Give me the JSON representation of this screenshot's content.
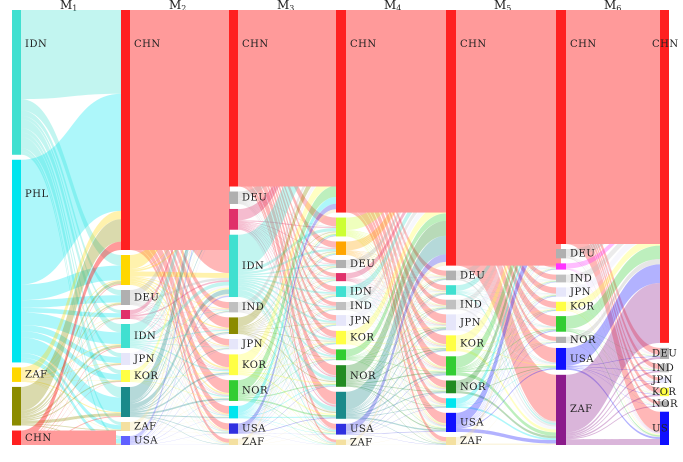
{
  "columns": [
    {
      "id": "M1",
      "label": "M",
      "sub": "1"
    },
    {
      "id": "M2",
      "label": "M",
      "sub": "2"
    },
    {
      "id": "M3",
      "label": "M",
      "sub": "3"
    },
    {
      "id": "M4",
      "label": "M",
      "sub": "4"
    },
    {
      "id": "M5",
      "label": "M",
      "sub": "5"
    },
    {
      "id": "M6",
      "label": "M",
      "sub": "6"
    }
  ],
  "nodes": [
    {
      "col": 0,
      "label": "IDN",
      "color": "#40e0d0",
      "value": 30
    },
    {
      "col": 0,
      "label": "PHL",
      "color": "#00e5ee",
      "value": 42
    },
    {
      "col": 0,
      "label": "ZAF",
      "color": "#ffd700",
      "value": 3
    },
    {
      "col": 0,
      "label": "",
      "color": "#8b8b00",
      "value": 8
    },
    {
      "col": 0,
      "label": "CHN",
      "color": "#ff2020",
      "value": 3
    },
    {
      "col": 1,
      "label": "CHN",
      "color": "#ff2020",
      "value": 80
    },
    {
      "col": 1,
      "label": "",
      "color": "#ffd700",
      "value": 10
    },
    {
      "col": 1,
      "label": "DEU",
      "color": "#b0b0b0",
      "value": 5
    },
    {
      "col": 1,
      "label": "",
      "color": "#e0306a",
      "value": 3
    },
    {
      "col": 1,
      "label": "IDN",
      "color": "#40e0d0",
      "value": 8
    },
    {
      "col": 1,
      "label": "JPN",
      "color": "#e6e6fa",
      "value": 4
    },
    {
      "col": 1,
      "label": "KOR",
      "color": "#ffff44",
      "value": 4
    },
    {
      "col": 1,
      "label": "",
      "color": "#1a8a8a",
      "value": 10
    },
    {
      "col": 1,
      "label": "ZAF",
      "color": "#f4e0a0",
      "value": 3
    },
    {
      "col": 1,
      "label": "USA",
      "color": "#6060ff",
      "value": 3
    },
    {
      "col": 2,
      "label": "CHN",
      "color": "#ff2020",
      "value": 85
    },
    {
      "col": 2,
      "label": "DEU",
      "color": "#b0b0b0",
      "value": 6
    },
    {
      "col": 2,
      "label": "",
      "color": "#e0306a",
      "value": 10
    },
    {
      "col": 2,
      "label": "IDN",
      "color": "#40e0d0",
      "value": 30
    },
    {
      "col": 2,
      "label": "IND",
      "color": "#c0c0c0",
      "value": 5
    },
    {
      "col": 2,
      "label": "",
      "color": "#8b8b00",
      "value": 8
    },
    {
      "col": 2,
      "label": "JPN",
      "color": "#e6e6fa",
      "value": 5
    },
    {
      "col": 2,
      "label": "KOR",
      "color": "#ffff44",
      "value": 10
    },
    {
      "col": 2,
      "label": "NOR",
      "color": "#32cd32",
      "value": 10
    },
    {
      "col": 2,
      "label": "",
      "color": "#00e5ee",
      "value": 6
    },
    {
      "col": 2,
      "label": "USA",
      "color": "#3030e0",
      "value": 5
    },
    {
      "col": 2,
      "label": "ZAF",
      "color": "#f4e0a0",
      "value": 3
    },
    {
      "col": 3,
      "label": "CHN",
      "color": "#ff2020",
      "value": 150
    },
    {
      "col": 3,
      "label": "",
      "color": "#ccff33",
      "value": 14
    },
    {
      "col": 3,
      "label": "",
      "color": "#ffa500",
      "value": 10
    },
    {
      "col": 3,
      "label": "DEU",
      "color": "#b0b0b0",
      "value": 6
    },
    {
      "col": 3,
      "label": "",
      "color": "#e0306a",
      "value": 6
    },
    {
      "col": 3,
      "label": "IDN",
      "color": "#40e0d0",
      "value": 8
    },
    {
      "col": 3,
      "label": "IND",
      "color": "#c0c0c0",
      "value": 6
    },
    {
      "col": 3,
      "label": "JPN",
      "color": "#e6e6fa",
      "value": 8
    },
    {
      "col": 3,
      "label": "KOR",
      "color": "#ffff44",
      "value": 10
    },
    {
      "col": 3,
      "label": "",
      "color": "#32cd32",
      "value": 8
    },
    {
      "col": 3,
      "label": "NOR",
      "color": "#228b22",
      "value": 16
    },
    {
      "col": 3,
      "label": "",
      "color": "#1a8a8a",
      "value": 20
    },
    {
      "col": 3,
      "label": "USA",
      "color": "#3030e0",
      "value": 8
    },
    {
      "col": 3,
      "label": "ZAF",
      "color": "#f4e0a0",
      "value": 4
    },
    {
      "col": 4,
      "label": "CHN",
      "color": "#ff2020",
      "value": 160
    },
    {
      "col": 4,
      "label": "DEU",
      "color": "#b0b0b0",
      "value": 6
    },
    {
      "col": 4,
      "label": "",
      "color": "#40e0d0",
      "value": 6
    },
    {
      "col": 4,
      "label": "IND",
      "color": "#c0c0c0",
      "value": 6
    },
    {
      "col": 4,
      "label": "JPN",
      "color": "#e6e6fa",
      "value": 10
    },
    {
      "col": 4,
      "label": "KOR",
      "color": "#ffff44",
      "value": 10
    },
    {
      "col": 4,
      "label": "",
      "color": "#32cd32",
      "value": 12
    },
    {
      "col": 4,
      "label": "NOR",
      "color": "#228b22",
      "value": 8
    },
    {
      "col": 4,
      "label": "",
      "color": "#00e5ee",
      "value": 6
    },
    {
      "col": 4,
      "label": "USA",
      "color": "#1010ff",
      "value": 12
    },
    {
      "col": 4,
      "label": "ZAF",
      "color": "#f4e0a0",
      "value": 5
    },
    {
      "col": 5,
      "label": "CHN",
      "color": "#ff2020",
      "value": 150
    },
    {
      "col": 5,
      "label": "DEU",
      "color": "#b0b0b0",
      "value": 6
    },
    {
      "col": 5,
      "label": "",
      "color": "#ff33ff",
      "value": 4
    },
    {
      "col": 5,
      "label": "IND",
      "color": "#c0c0c0",
      "value": 5
    },
    {
      "col": 5,
      "label": "JPN",
      "color": "#e6e6fa",
      "value": 6
    },
    {
      "col": 5,
      "label": "KOR",
      "color": "#ffff44",
      "value": 6
    },
    {
      "col": 5,
      "label": "",
      "color": "#32cd32",
      "value": 10
    },
    {
      "col": 5,
      "label": "NOR",
      "color": "#b0b0b0",
      "value": 4
    },
    {
      "col": 5,
      "label": "USA",
      "color": "#1010ff",
      "value": 14
    },
    {
      "col": 5,
      "label": "ZAF",
      "color": "#8b1a8b",
      "value": 45
    },
    {
      "col": 6,
      "label": "CHN",
      "color": "#ff2020",
      "value": 120
    },
    {
      "col": 6,
      "label": "DEU",
      "color": "#b0b0b0",
      "value": 4
    },
    {
      "col": 6,
      "label": "IND",
      "color": "#c0c0c0",
      "value": 3
    },
    {
      "col": 6,
      "label": "JPN",
      "color": "#e6e6fa",
      "value": 2
    },
    {
      "col": 6,
      "label": "KOR",
      "color": "#ffff44",
      "value": 3
    },
    {
      "col": 6,
      "label": "NOR",
      "color": "#b0b0b0",
      "value": 2
    },
    {
      "col": 6,
      "label": "US",
      "color": "#1010ff",
      "value": 12
    }
  ]
}
